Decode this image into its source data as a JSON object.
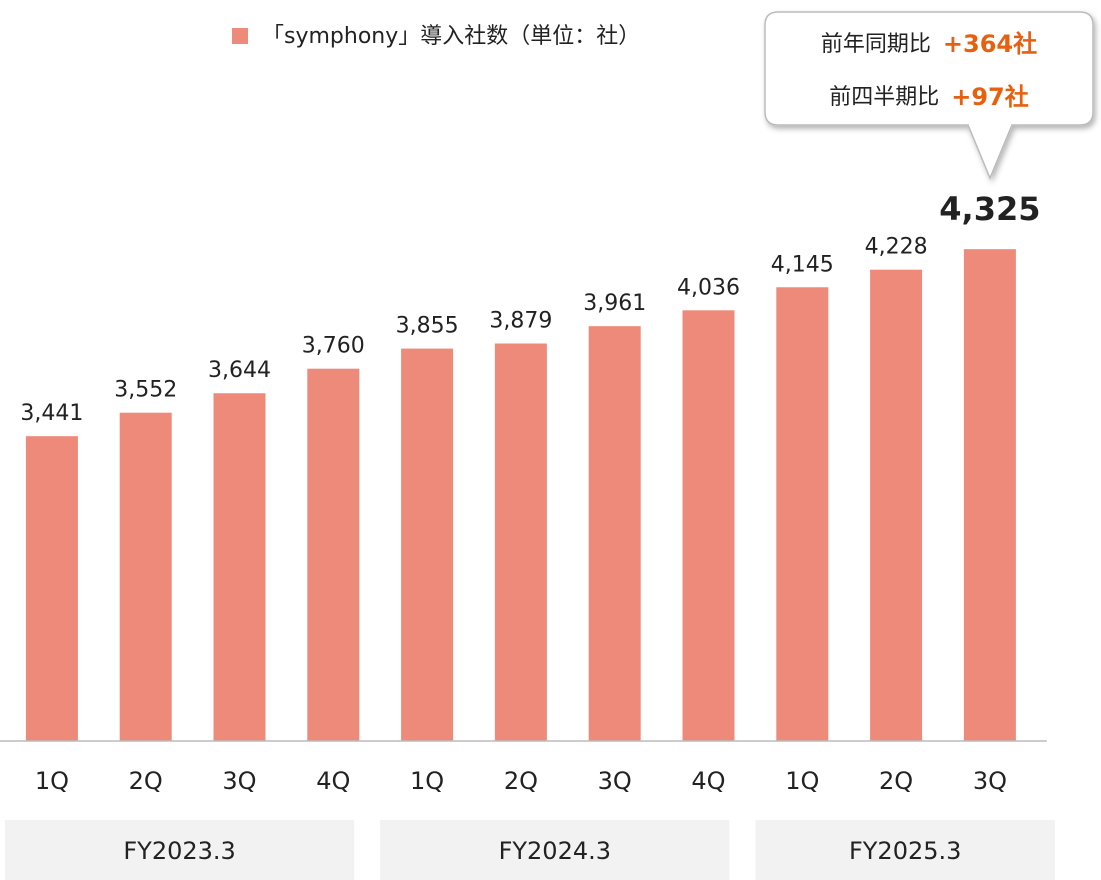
{
  "chart_data": {
    "type": "bar",
    "series": [
      {
        "name": "「symphony」導入社数（単位：社）",
        "color": "#ee8a7a",
        "values": [
          3441,
          3552,
          3644,
          3760,
          3855,
          3879,
          3961,
          4036,
          4145,
          4228,
          4325
        ],
        "value_labels": [
          "3,441",
          "3,552",
          "3,644",
          "3,760",
          "3,855",
          "3,879",
          "3,961",
          "4,036",
          "4,145",
          "4,228",
          "4,325"
        ]
      }
    ],
    "groups": [
      {
        "label": "FY2023.3",
        "categories": [
          "1Q",
          "2Q",
          "3Q",
          "4Q"
        ]
      },
      {
        "label": "FY2024.3",
        "categories": [
          "1Q",
          "2Q",
          "3Q",
          "4Q"
        ]
      },
      {
        "label": "FY2025.3",
        "categories": [
          "1Q",
          "2Q",
          "3Q"
        ]
      }
    ],
    "ylim": [
      2000,
      4600
    ],
    "annotations": [
      {
        "text": "前年同期比",
        "value": "+364社"
      },
      {
        "text": "前四半期比",
        "value": "+97社"
      }
    ]
  }
}
